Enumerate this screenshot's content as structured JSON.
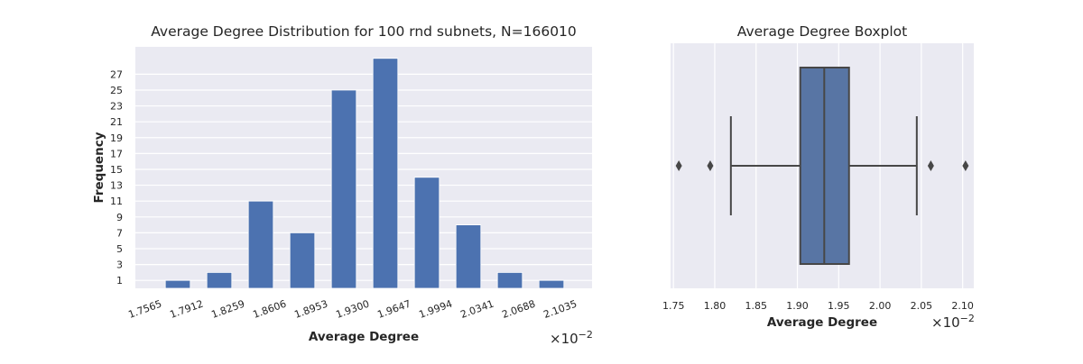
{
  "chart_data": [
    {
      "type": "bar",
      "title": "Average Degree Distribution for 100 rnd subnets, N=166010",
      "xlabel": "Average Degree",
      "ylabel": "Frequency",
      "x_scale_label": "×10",
      "x_scale_exp": "−2",
      "bin_edges": [
        "1.7565",
        "1.7912",
        "1.8259",
        "1.8606",
        "1.8953",
        "1.9300",
        "1.9647",
        "1.9994",
        "2.0341",
        "2.0688",
        "2.1035"
      ],
      "bin_edge_values": [
        1.7565,
        1.7912,
        1.8259,
        1.8606,
        1.8953,
        1.93,
        1.9647,
        1.9994,
        2.0341,
        2.0688,
        2.1035
      ],
      "values": [
        1,
        2,
        11,
        7,
        25,
        29,
        14,
        8,
        2,
        1
      ],
      "yticks": [
        "1",
        "3",
        "5",
        "7",
        "9",
        "11",
        "13",
        "15",
        "17",
        "19",
        "21",
        "23",
        "25",
        "27"
      ],
      "ylim": [
        0,
        30.45
      ],
      "grid": true,
      "bar_color": "#4c72b0",
      "background": "#eaeaf2"
    },
    {
      "type": "boxplot",
      "title": "Average Degree Boxplot",
      "xlabel": "Average Degree",
      "x_scale_label": "×10",
      "x_scale_exp": "−2",
      "xticks": [
        "1.75",
        "1.80",
        "1.85",
        "1.90",
        "1.95",
        "2.00",
        "2.05",
        "2.10"
      ],
      "xtick_values": [
        1.75,
        1.8,
        1.85,
        1.9,
        1.95,
        2.0,
        2.05,
        2.1
      ],
      "xlim": [
        1.7465,
        2.1135
      ],
      "whisker_low": 1.8195,
      "q1": 1.9035,
      "median": 1.9325,
      "q3": 1.9625,
      "whisker_high": 2.0445,
      "outliers": [
        1.7565,
        1.7945,
        2.0615,
        2.1035
      ],
      "grid": true,
      "box_color": "#5875a4",
      "line_color": "#474747",
      "background": "#eaeaf2"
    }
  ]
}
